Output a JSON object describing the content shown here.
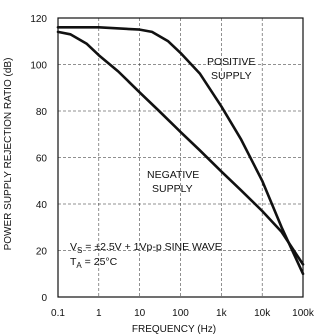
{
  "chart_data": {
    "type": "line",
    "xlabel": "FREQUENCY (Hz)",
    "ylabel": "POWER SUPPLY REJECTION RATIO (dB)",
    "xscale": "log",
    "xlim": [
      0.1,
      100000
    ],
    "ylim": [
      0,
      120
    ],
    "x_ticks": [
      0.1,
      1,
      10,
      100,
      1000,
      10000,
      100000
    ],
    "x_tick_labels": [
      "0.1",
      "1",
      "10",
      "100",
      "1k",
      "10k",
      "100k"
    ],
    "y_ticks": [
      0,
      20,
      40,
      60,
      80,
      100,
      120
    ],
    "y_tick_labels": [
      "0",
      "20",
      "40",
      "60",
      "80",
      "100",
      "120"
    ],
    "grid": true,
    "series": [
      {
        "name": "POSITIVE SUPPLY",
        "x": [
          0.1,
          1,
          10,
          20,
          50,
          100,
          300,
          1000,
          3000,
          10000,
          30000,
          100000
        ],
        "y": [
          116,
          116,
          115,
          114,
          110,
          105,
          96,
          82,
          68,
          50,
          30,
          10
        ]
      },
      {
        "name": "NEGATIVE SUPPLY",
        "x": [
          0.1,
          0.2,
          0.5,
          1,
          3,
          10,
          30,
          100,
          300,
          1000,
          3000,
          10000,
          30000,
          100000
        ],
        "y": [
          114,
          113,
          109,
          104,
          97,
          88,
          80,
          71,
          63,
          54,
          46,
          37,
          28,
          14
        ]
      }
    ],
    "annotations": [
      {
        "id": "positive",
        "lines": [
          "POSITIVE",
          "SUPPLY"
        ]
      },
      {
        "id": "negative",
        "lines": [
          "NEGATIVE",
          "SUPPLY"
        ]
      }
    ],
    "conditions": {
      "line1_main": "V",
      "line1_sub": "S",
      "line1_rest": " = ±2.5V + 1Vp-p SINE WAVE",
      "line2_main": "T",
      "line2_sub": "A",
      "line2_rest": " = 25°C"
    }
  }
}
